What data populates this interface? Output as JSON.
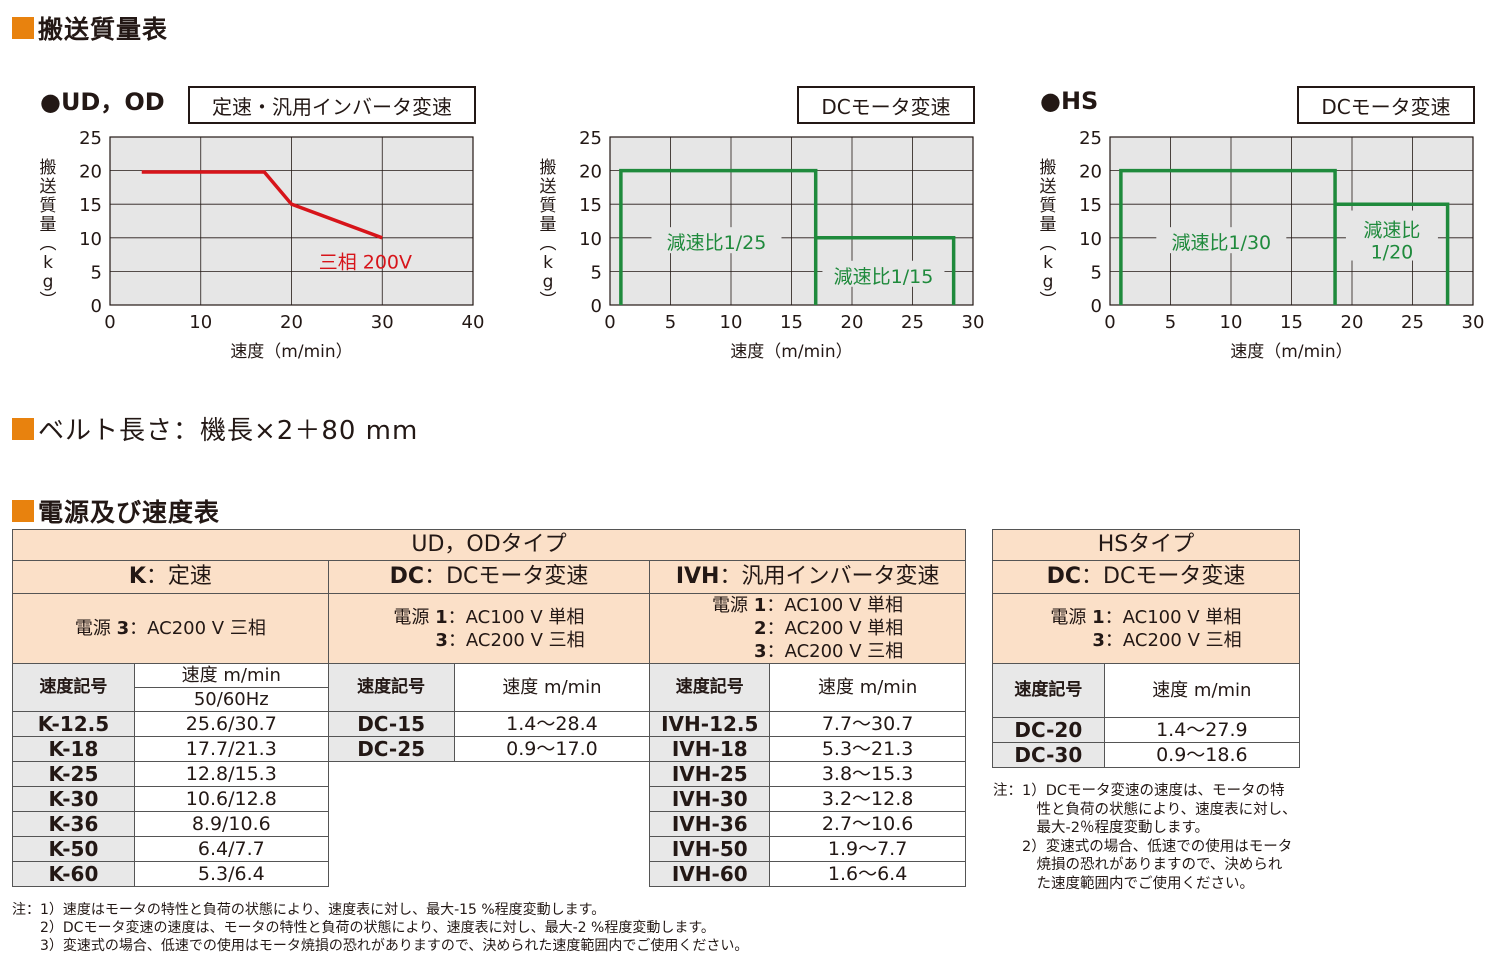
{
  "sections": {
    "transport_title": "搬送質量表",
    "belt_length": "ベルト長さ：機長×2＋80 mm",
    "power_title": "電源及び速度表"
  },
  "charts_header": {
    "ud_od_mark": "●UD，OD",
    "hs_mark": "●HS",
    "chart1_tag": "定速・汎用インバータ変速",
    "chart2_tag": "DCモータ変速",
    "chart3_tag": "DCモータ変速",
    "ylabel": "搬送質量（kg）",
    "xlabel": "速度（m/min）"
  },
  "chart_data": [
    {
      "type": "line",
      "xlabel": "速度（m/min）",
      "ylabel": "搬送質量（kg）",
      "xlim": [
        0,
        40
      ],
      "ylim": [
        0,
        25
      ],
      "xticks": [
        0,
        10,
        20,
        30,
        40
      ],
      "yticks": [
        0,
        5,
        10,
        15,
        20,
        25
      ],
      "grid": true,
      "series": [
        {
          "name": "三相 200V",
          "color": "#d7141a",
          "x": [
            3.5,
            17,
            20,
            30
          ],
          "y": [
            19.8,
            19.8,
            15,
            10
          ]
        }
      ]
    },
    {
      "type": "line",
      "xlabel": "速度（m/min）",
      "ylabel": "搬送質量（kg）",
      "xlim": [
        0,
        30
      ],
      "ylim": [
        0,
        25
      ],
      "xticks": [
        0,
        5,
        10,
        15,
        20,
        25,
        30
      ],
      "yticks": [
        0,
        5,
        10,
        15,
        20,
        25
      ],
      "grid": true,
      "series": [
        {
          "name": "減速比1/25",
          "color": "#1f8a3c",
          "x": [
            0.9,
            0.9,
            17,
            17
          ],
          "y": [
            0,
            20,
            20,
            0
          ]
        },
        {
          "name": "減速比1/15",
          "color": "#1f8a3c",
          "x": [
            17,
            28.4,
            28.4
          ],
          "y": [
            10,
            10,
            0
          ]
        }
      ]
    },
    {
      "type": "line",
      "xlabel": "速度（m/min）",
      "ylabel": "搬送質量（kg）",
      "xlim": [
        0,
        30
      ],
      "ylim": [
        0,
        25
      ],
      "xticks": [
        0,
        5,
        10,
        15,
        20,
        25,
        30
      ],
      "yticks": [
        0,
        5,
        10,
        15,
        20,
        25
      ],
      "grid": true,
      "series": [
        {
          "name": "減速比1/30",
          "color": "#1f8a3c",
          "x": [
            0.9,
            0.9,
            18.6,
            18.6
          ],
          "y": [
            0,
            20,
            20,
            0
          ]
        },
        {
          "name": "減速比1/20",
          "color": "#1f8a3c",
          "x": [
            18.6,
            27.9,
            27.9
          ],
          "y": [
            15,
            15,
            0
          ]
        }
      ]
    }
  ],
  "table_ud": {
    "type_header": "UD，ODタイプ",
    "k_header_code": "K",
    "k_header": "：定速",
    "dc_header_code": "DC",
    "dc_header": "：DCモータ変速",
    "ivh_header_code": "IVH",
    "ivh_header": "：汎用インバータ変速",
    "k_power_prefix": "電源 ",
    "k_power_num": "3",
    "k_power": "：AC200 V 三相",
    "dc_power_prefix": "電源 ",
    "dc_power": [
      {
        "num": "1",
        "text": "：AC100 V 単相"
      },
      {
        "num": "3",
        "text": "：AC200 V 三相"
      }
    ],
    "ivh_power_prefix": "電源 ",
    "ivh_power": [
      {
        "num": "1",
        "text": "：AC100 V 単相"
      },
      {
        "num": "2",
        "text": "：AC200 V 単相"
      },
      {
        "num": "3",
        "text": "：AC200 V 三相"
      }
    ],
    "code_header": "速度記号",
    "speed_header": "速度 m/min",
    "freq_header": "50/60Hz",
    "k_rows": [
      {
        "code": "K-12.5",
        "speed": "25.6/30.7"
      },
      {
        "code": "K-18",
        "speed": "17.7/21.3"
      },
      {
        "code": "K-25",
        "speed": "12.8/15.3"
      },
      {
        "code": "K-30",
        "speed": "10.6/12.8"
      },
      {
        "code": "K-36",
        "speed": "8.9/10.6"
      },
      {
        "code": "K-50",
        "speed": "6.4/7.7"
      },
      {
        "code": "K-60",
        "speed": "5.3/6.4"
      }
    ],
    "dc_rows": [
      {
        "code": "DC-15",
        "speed": "1.4～28.4"
      },
      {
        "code": "DC-25",
        "speed": "0.9～17.0"
      }
    ],
    "ivh_rows": [
      {
        "code": "IVH-12.5",
        "speed": "7.7～30.7"
      },
      {
        "code": "IVH-18",
        "speed": "5.3～21.3"
      },
      {
        "code": "IVH-25",
        "speed": "3.8～15.3"
      },
      {
        "code": "IVH-30",
        "speed": "3.2～12.8"
      },
      {
        "code": "IVH-36",
        "speed": "2.7～10.6"
      },
      {
        "code": "IVH-50",
        "speed": "1.9～7.7"
      },
      {
        "code": "IVH-60",
        "speed": "1.6～6.4"
      }
    ]
  },
  "table_hs": {
    "type_header": "HSタイプ",
    "dc_header_code": "DC",
    "dc_header": "：DCモータ変速",
    "power_prefix": "電源 ",
    "power": [
      {
        "num": "1",
        "text": "：AC100 V 単相"
      },
      {
        "num": "3",
        "text": "：AC200 V 三相"
      }
    ],
    "code_header": "速度記号",
    "speed_header": "速度 m/min",
    "rows": [
      {
        "code": "DC-20",
        "speed": "1.4～27.9"
      },
      {
        "code": "DC-30",
        "speed": "0.9～18.6"
      }
    ]
  },
  "notes_hs": "注：1）DCモータ変速の速度は、モータの特\n　　　性と負荷の状態により、速度表に対し、\n　　　最大-2％程度変動します。\n　　2）変速式の場合、低速での使用はモータ\n　　　焼損の恐れがありますので、決められ\n　　　た速度範囲内でご使用ください。",
  "notes_ud": "注：1）速度はモータの特性と負荷の状態により、速度表に対し、最大-15 %程度変動します。\n　　2）DCモータ変速の速度は、モータの特性と負荷の状態により、速度表に対し、最大-2 %程度変動します。\n　　3）変速式の場合、低速での使用はモータ焼損の恐れがありますので、決められた速度範囲内でご使用ください。"
}
